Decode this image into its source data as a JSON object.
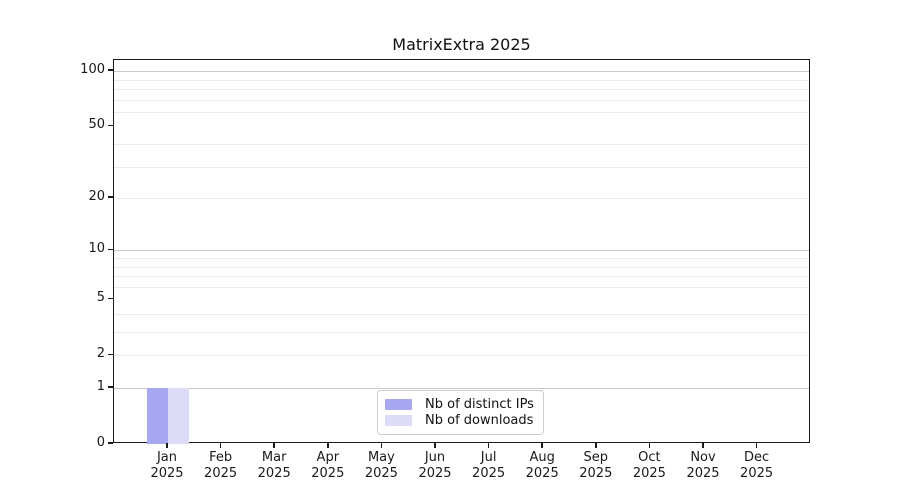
{
  "chart_data": {
    "type": "bar",
    "title": "MatrixExtra 2025",
    "x_categories": [
      {
        "month": "Jan",
        "year": "2025"
      },
      {
        "month": "Feb",
        "year": "2025"
      },
      {
        "month": "Mar",
        "year": "2025"
      },
      {
        "month": "Apr",
        "year": "2025"
      },
      {
        "month": "May",
        "year": "2025"
      },
      {
        "month": "Jun",
        "year": "2025"
      },
      {
        "month": "Jul",
        "year": "2025"
      },
      {
        "month": "Aug",
        "year": "2025"
      },
      {
        "month": "Sep",
        "year": "2025"
      },
      {
        "month": "Oct",
        "year": "2025"
      },
      {
        "month": "Nov",
        "year": "2025"
      },
      {
        "month": "Dec",
        "year": "2025"
      }
    ],
    "series": [
      {
        "name": "Nb of distinct IPs",
        "color": "#a8a8f2",
        "values": [
          1,
          0,
          0,
          0,
          0,
          0,
          0,
          0,
          0,
          0,
          0,
          0
        ]
      },
      {
        "name": "Nb of downloads",
        "color": "#dcdcf9",
        "values": [
          1,
          0,
          0,
          0,
          0,
          0,
          0,
          0,
          0,
          0,
          0,
          0
        ]
      }
    ],
    "y_axis": {
      "scale": "log1p",
      "ticks": [
        0,
        1,
        2,
        5,
        10,
        20,
        50,
        100
      ],
      "min": 0,
      "max": 115
    },
    "grid": {
      "major_values": [
        1,
        10,
        100
      ],
      "minor_values": [
        2,
        3,
        4,
        6,
        7,
        8,
        9,
        20,
        30,
        40,
        60,
        70,
        80,
        90
      ],
      "major_color": "#c8c8c8",
      "minor_color": "#ececec"
    },
    "legend": {
      "position": "lower center"
    }
  }
}
